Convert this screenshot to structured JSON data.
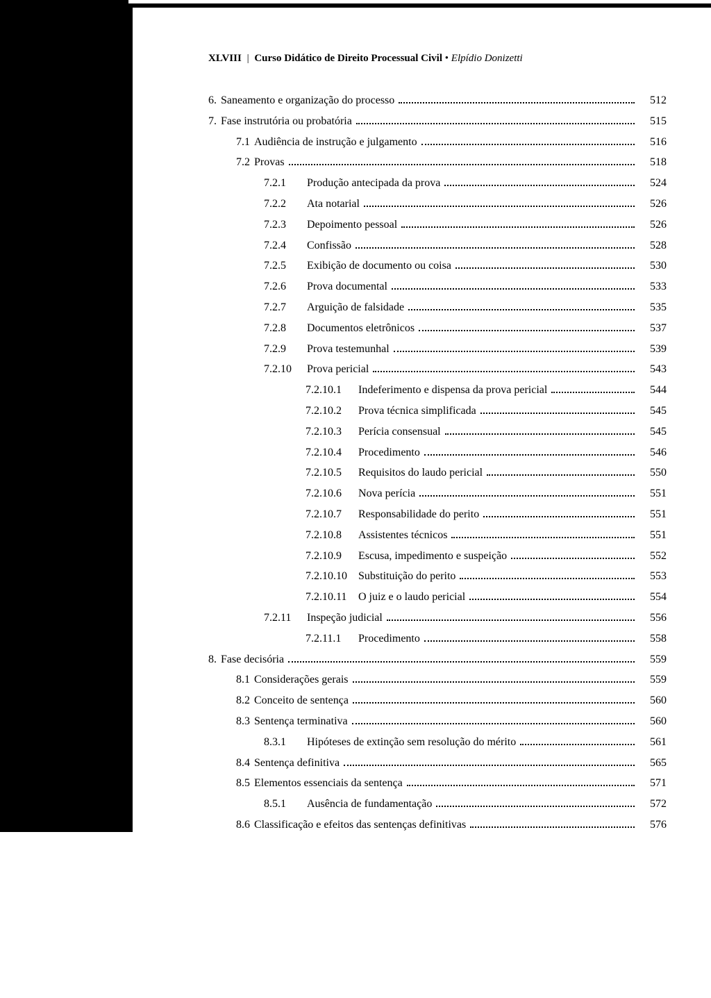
{
  "header": {
    "page_roman": "XLVIII",
    "separator": "|",
    "book_title": "Curso Didático de Direito Processual Civil",
    "bullet": "•",
    "author": "Elpídio Donizetti"
  },
  "toc": [
    {
      "level": 0,
      "num": "6.",
      "text": "Saneamento e organização do processo",
      "page": "512"
    },
    {
      "level": 0,
      "num": "7.",
      "text": "Fase instrutória ou probatória",
      "page": "515"
    },
    {
      "level": 1,
      "num": "7.1",
      "text": "Audiência de instrução e julgamento",
      "page": "516"
    },
    {
      "level": 1,
      "num": "7.2",
      "text": "Provas",
      "page": "518"
    },
    {
      "level": 2,
      "num": "7.2.1",
      "text": "Produção antecipada da prova",
      "page": "524"
    },
    {
      "level": 2,
      "num": "7.2.2",
      "text": "Ata notarial",
      "page": "526"
    },
    {
      "level": 2,
      "num": "7.2.3",
      "text": "Depoimento pessoal",
      "page": "526"
    },
    {
      "level": 2,
      "num": "7.2.4",
      "text": "Confissão",
      "page": "528"
    },
    {
      "level": 2,
      "num": "7.2.5",
      "text": "Exibição de documento ou coisa",
      "page": "530"
    },
    {
      "level": 2,
      "num": "7.2.6",
      "text": "Prova documental",
      "page": "533"
    },
    {
      "level": 2,
      "num": "7.2.7",
      "text": "Arguição de falsidade",
      "page": "535"
    },
    {
      "level": 2,
      "num": "7.2.8",
      "text": "Documentos eletrônicos",
      "page": "537"
    },
    {
      "level": 2,
      "num": "7.2.9",
      "text": "Prova testemunhal",
      "page": "539"
    },
    {
      "level": 2,
      "num": "7.2.10",
      "text": "Prova pericial",
      "page": "543"
    },
    {
      "level": 3,
      "num": "7.2.10.1",
      "text": "Indeferimento e dispensa da prova pericial",
      "page": "544"
    },
    {
      "level": 3,
      "num": "7.2.10.2",
      "text": "Prova técnica simplificada",
      "page": "545"
    },
    {
      "level": 3,
      "num": "7.2.10.3",
      "text": "Perícia consensual",
      "page": "545"
    },
    {
      "level": 3,
      "num": "7.2.10.4",
      "text": "Procedimento",
      "page": "546"
    },
    {
      "level": 3,
      "num": "7.2.10.5",
      "text": "Requisitos do laudo pericial",
      "page": "550"
    },
    {
      "level": 3,
      "num": "7.2.10.6",
      "text": "Nova perícia",
      "page": "551"
    },
    {
      "level": 3,
      "num": "7.2.10.7",
      "text": "Responsabilidade do perito",
      "page": "551"
    },
    {
      "level": 3,
      "num": "7.2.10.8",
      "text": "Assistentes técnicos",
      "page": "551"
    },
    {
      "level": 3,
      "num": "7.2.10.9",
      "text": "Escusa, impedimento e suspeição",
      "page": "552"
    },
    {
      "level": 3,
      "num": "7.2.10.10",
      "text": "Substituição do perito",
      "page": "553"
    },
    {
      "level": 3,
      "num": "7.2.10.11",
      "text": "O juiz e o laudo pericial",
      "page": "554"
    },
    {
      "level": 2,
      "num": "7.2.11",
      "text": "Inspeção judicial",
      "page": "556"
    },
    {
      "level": 3,
      "num": "7.2.11.1",
      "text": "Procedimento",
      "page": "558"
    },
    {
      "level": 0,
      "num": "8.",
      "text": "Fase decisória",
      "page": "559"
    },
    {
      "level": 1,
      "num": "8.1",
      "text": "Considerações gerais",
      "page": "559"
    },
    {
      "level": 1,
      "num": "8.2",
      "text": "Conceito de sentença",
      "page": "560"
    },
    {
      "level": 1,
      "num": "8.3",
      "text": "Sentença terminativa",
      "page": "560"
    },
    {
      "level": 2,
      "num": "8.3.1",
      "text": "Hipóteses de extinção sem resolução do mérito",
      "page": "561"
    },
    {
      "level": 1,
      "num": "8.4",
      "text": "Sentença definitiva",
      "page": "565"
    },
    {
      "level": 1,
      "num": "8.5",
      "text": "Elementos essenciais da sentença",
      "page": "571"
    },
    {
      "level": 2,
      "num": "8.5.1",
      "text": "Ausência de fundamentação",
      "page": "572"
    },
    {
      "level": 1,
      "num": "8.6",
      "text": "Classificação e efeitos das sentenças definitivas",
      "page": "576"
    }
  ]
}
